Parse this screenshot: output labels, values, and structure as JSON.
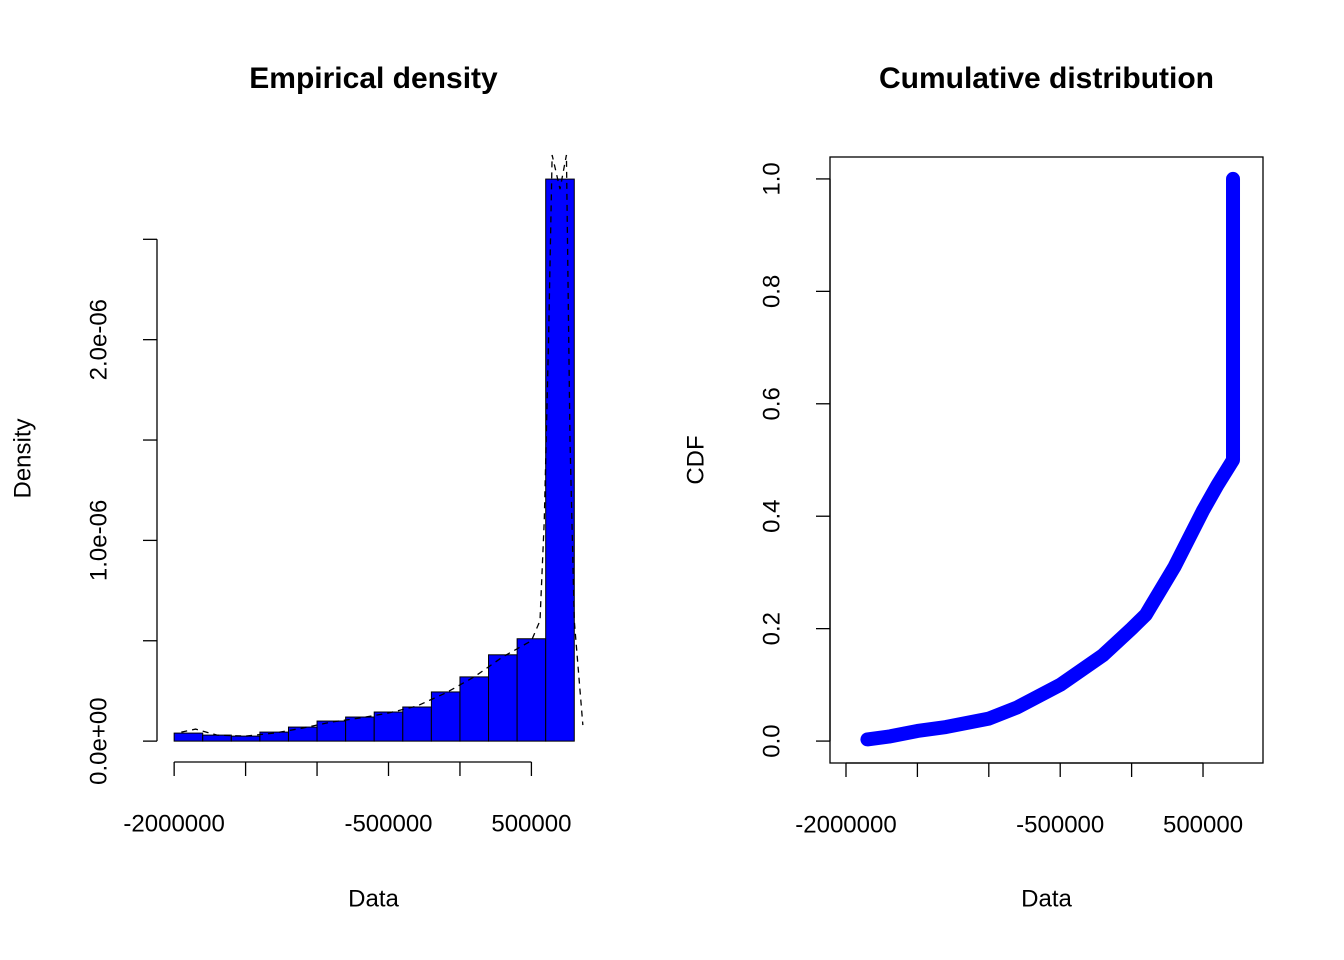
{
  "chart_data": [
    {
      "type": "histogram",
      "title": "Empirical density",
      "xlabel": "Data",
      "ylabel": "Density",
      "bins": [
        -2000000,
        -1800000,
        -1600000,
        -1400000,
        -1200000,
        -1000000,
        -800000,
        -600000,
        -400000,
        -200000,
        0,
        200000,
        400000,
        600000,
        800000
      ],
      "values": [
        4e-08,
        3e-08,
        2.5e-08,
        4.5e-08,
        7e-08,
        1e-07,
        1.2e-07,
        1.45e-07,
        1.7e-07,
        2.45e-07,
        3.2e-07,
        4.3e-07,
        5.1e-07,
        2.8e-06
      ],
      "color": "#0000ff",
      "curve": {
        "x": [
          -1950000,
          -1850000,
          -1700000,
          -1500000,
          -1300000,
          -1100000,
          -900000,
          -700000,
          -500000,
          -300000,
          -100000,
          100000,
          300000,
          500000,
          560000,
          590000,
          620000,
          645000,
          700000,
          745000,
          770000,
          800000,
          860000
        ],
        "values": [
          4.5e-08,
          6e-08,
          3e-08,
          2.5e-08,
          4e-08,
          6.5e-08,
          9.5e-08,
          1.15e-07,
          1.4e-07,
          1.75e-07,
          2.4e-07,
          3.2e-07,
          4.2e-07,
          5e-07,
          6e-07,
          1.1e-06,
          2e-06,
          2.92e-06,
          2.75e-06,
          2.92e-06,
          1.5e-06,
          6e-07,
          8e-08
        ]
      },
      "xlim": [
        -2120000,
        910000
      ],
      "ylim": [
        -1.04e-07,
        2.92e-06
      ],
      "xticks": [
        -2000000,
        {
          "value": -1500000,
          "label": null
        },
        {
          "value": -1000000,
          "label": null
        },
        -500000,
        {
          "value": 0,
          "label": null
        },
        500000
      ],
      "yticks": [
        {
          "value": 0,
          "label": "0.0e+00"
        },
        {
          "value": 5e-07,
          "label": null
        },
        {
          "value": 1e-06,
          "label": "1.0e-06"
        },
        {
          "value": 1.5e-06,
          "label": null
        },
        {
          "value": 2e-06,
          "label": "2.0e-06"
        },
        {
          "value": 2.5e-06,
          "label": null
        }
      ]
    },
    {
      "type": "line",
      "title": "Cumulative distribution",
      "xlabel": "Data",
      "ylabel": "CDF",
      "x": [
        -1850000,
        -1700000,
        -1500000,
        -1300000,
        -1000000,
        -800000,
        -500000,
        -200000,
        0,
        100000,
        300000,
        400000,
        500000,
        600000,
        710000,
        710000,
        710000,
        710000,
        710000,
        710000
      ],
      "values": [
        0.003,
        0.008,
        0.018,
        0.025,
        0.04,
        0.06,
        0.1,
        0.153,
        0.2,
        0.225,
        0.31,
        0.36,
        0.41,
        0.455,
        0.5,
        0.6,
        0.7,
        0.8,
        0.9,
        1.0
      ],
      "color": "#0000ff",
      "xlim": [
        -2112000,
        920000
      ],
      "ylim": [
        -0.039,
        1.039
      ],
      "xticks": [
        -2000000,
        {
          "value": -1500000,
          "label": null
        },
        {
          "value": -1000000,
          "label": null
        },
        -500000,
        {
          "value": 0,
          "label": null
        },
        500000
      ],
      "yticks": [
        {
          "value": 0,
          "label": "0.0"
        },
        {
          "value": 0.2,
          "label": "0.2"
        },
        {
          "value": 0.4,
          "label": "0.4"
        },
        {
          "value": 0.6,
          "label": "0.6"
        },
        {
          "value": 0.8,
          "label": "0.8"
        },
        {
          "value": 1,
          "label": "1.0"
        }
      ],
      "box": true
    }
  ]
}
